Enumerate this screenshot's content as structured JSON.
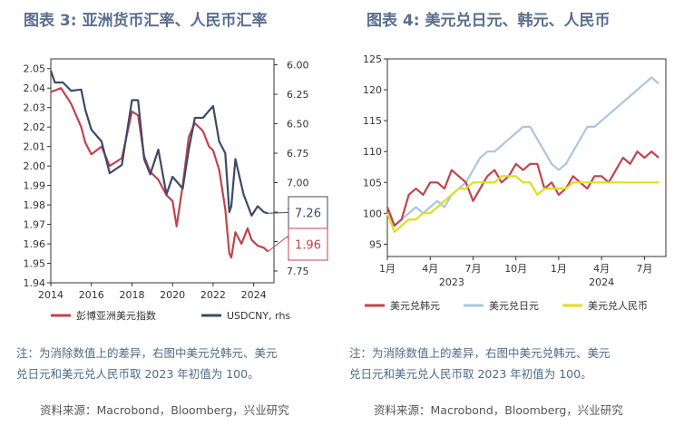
{
  "left": {
    "title": "图表 3: 亚洲货币汇率、人民币汇率",
    "note_line1": "注：为消除数值上的差异，右图中美元兑韩元、美元",
    "note_line2": "兑日元和美元兑人民币取 2023 年初值为 100。",
    "source": "资料来源：Macrobond，Bloomberg，兴业研究"
  },
  "right": {
    "title": "图表 4: 美元兑日元、韩元、人民币",
    "note_line1": "注：为消除数值上的差异，右图中美元兑韩元、美元",
    "note_line2": "兑日元和美元兑人民币取 2023 年初值为 100。",
    "source": "资料来源：Macrobond，Bloomberg，兴业研究"
  },
  "chart_data": [
    {
      "type": "line",
      "title": "图表 3: 亚洲货币汇率、人民币汇率",
      "x_ticks": [
        "2014",
        "2016",
        "2018",
        "2020",
        "2022",
        "2024"
      ],
      "xlim": [
        2014,
        2025
      ],
      "y_left_ticks": [
        "2.05",
        "2.04",
        "2.03",
        "2.02",
        "2.01",
        "2.00",
        "1.99",
        "1.98",
        "1.97",
        "1.96",
        "1.95",
        "1.94"
      ],
      "ylim_left": [
        1.94,
        2.055
      ],
      "y_right_ticks": [
        "6.00",
        "6.25",
        "6.50",
        "6.75",
        "7.00",
        "7.25",
        "7.50",
        "7.75"
      ],
      "ylim_right": [
        7.85,
        5.95
      ],
      "y_right_inverted": true,
      "annotations": [
        {
          "text": "7.26",
          "series": "USDCNY, rhs",
          "color": "#3d4a66"
        },
        {
          "text": "1.96",
          "series": "彭博亚洲美元指数",
          "color": "#c0444e"
        }
      ],
      "legend_position": "bottom",
      "series": [
        {
          "name": "彭博亚洲美元指数",
          "axis": "left",
          "color": "#c0444e",
          "x": [
            2014.0,
            2014.5,
            2015.0,
            2015.5,
            2015.7,
            2016.0,
            2016.5,
            2016.9,
            2017.5,
            2018.0,
            2018.3,
            2018.6,
            2018.9,
            2019.3,
            2019.7,
            2020.0,
            2020.2,
            2020.5,
            2020.8,
            2021.1,
            2021.5,
            2021.8,
            2022.0,
            2022.3,
            2022.6,
            2022.8,
            2022.9,
            2023.1,
            2023.4,
            2023.7,
            2023.9,
            2024.2,
            2024.5,
            2024.7
          ],
          "y": [
            2.038,
            2.04,
            2.032,
            2.02,
            2.012,
            2.006,
            2.01,
            2.0,
            2.004,
            2.028,
            2.026,
            2.005,
            1.997,
            1.993,
            1.985,
            1.982,
            1.969,
            1.99,
            2.015,
            2.022,
            2.018,
            2.01,
            2.008,
            1.998,
            1.978,
            1.955,
            1.953,
            1.966,
            1.96,
            1.968,
            1.962,
            1.959,
            1.958,
            1.956
          ]
        },
        {
          "name": "USDCNY, rhs",
          "axis": "right",
          "color": "#3d4a66",
          "x": [
            2014.0,
            2014.2,
            2014.6,
            2015.0,
            2015.5,
            2015.7,
            2016.0,
            2016.5,
            2016.9,
            2017.5,
            2018.0,
            2018.3,
            2018.6,
            2018.9,
            2019.3,
            2019.7,
            2020.0,
            2020.5,
            2020.8,
            2021.1,
            2021.5,
            2022.0,
            2022.3,
            2022.6,
            2022.8,
            2022.9,
            2023.1,
            2023.5,
            2023.9,
            2024.2,
            2024.5,
            2024.7
          ],
          "y": [
            6.05,
            6.15,
            6.15,
            6.22,
            6.21,
            6.38,
            6.55,
            6.65,
            6.92,
            6.85,
            6.3,
            6.3,
            6.8,
            6.93,
            6.72,
            7.1,
            6.95,
            7.05,
            6.72,
            6.45,
            6.45,
            6.35,
            6.65,
            6.75,
            7.25,
            7.2,
            6.8,
            7.1,
            7.28,
            7.2,
            7.25,
            7.26
          ]
        }
      ]
    },
    {
      "type": "line",
      "title": "图表 4: 美元兑日元、韩元、人民币",
      "x_tick_labels": [
        "1月",
        "4月",
        "7月",
        "10月",
        "1月",
        "4月",
        "7月"
      ],
      "x_year_labels": [
        "2023",
        "2024"
      ],
      "xlim": [
        0,
        19.5
      ],
      "y_ticks": [
        "125",
        "120",
        "115",
        "110",
        "105",
        "100",
        "95"
      ],
      "ylim": [
        93,
        125
      ],
      "legend_position": "bottom",
      "series": [
        {
          "name": "美元兑韩元",
          "color": "#c0444e",
          "x": [
            0,
            0.5,
            1,
            1.5,
            2,
            2.5,
            3,
            3.5,
            4,
            4.5,
            5,
            5.5,
            6,
            6.5,
            7,
            7.5,
            8,
            8.5,
            9,
            9.5,
            10,
            10.5,
            11,
            11.5,
            12,
            12.5,
            13,
            13.5,
            14,
            14.5,
            15,
            15.5,
            16,
            16.5,
            17,
            17.5,
            18,
            18.5,
            19
          ],
          "y": [
            101,
            98,
            99,
            103,
            104,
            103,
            105,
            105,
            104,
            107,
            106,
            105,
            102,
            104,
            106,
            107,
            105,
            106,
            108,
            107,
            108,
            108,
            104,
            105,
            103,
            104,
            106,
            105,
            104,
            106,
            106,
            105,
            107,
            109,
            108,
            110,
            109,
            110,
            109
          ]
        },
        {
          "name": "美元兑日元",
          "color": "#a9c6e2",
          "x": [
            0,
            0.5,
            1,
            1.5,
            2,
            2.5,
            3,
            3.5,
            4,
            4.5,
            5,
            5.5,
            6,
            6.5,
            7,
            7.5,
            8,
            8.5,
            9,
            9.5,
            10,
            10.5,
            11,
            11.5,
            12,
            12.5,
            13,
            13.5,
            14,
            14.5,
            15,
            15.5,
            16,
            16.5,
            17,
            17.5,
            18,
            18.5,
            19
          ],
          "y": [
            100,
            98,
            99,
            100,
            101,
            100,
            101,
            102,
            101,
            103,
            104,
            105,
            107,
            109,
            110,
            110,
            111,
            112,
            113,
            114,
            114,
            112,
            110,
            108,
            107,
            108,
            110,
            112,
            114,
            114,
            115,
            116,
            117,
            118,
            119,
            120,
            121,
            122,
            121
          ]
        },
        {
          "name": "美元兑人民币",
          "color": "#dede1e",
          "x": [
            0,
            0.5,
            1,
            1.5,
            2,
            2.5,
            3,
            3.5,
            4,
            4.5,
            5,
            5.5,
            6,
            6.5,
            7,
            7.5,
            8,
            8.5,
            9,
            9.5,
            10,
            10.5,
            11,
            11.5,
            12,
            12.5,
            13,
            13.5,
            14,
            14.5,
            15,
            15.5,
            16,
            16.5,
            17,
            17.5,
            18,
            18.5,
            19
          ],
          "y": [
            100,
            97,
            98,
            99,
            99,
            100,
            100,
            101,
            102,
            103,
            104,
            104,
            105,
            105,
            105,
            105,
            106,
            106,
            106,
            105,
            105,
            103,
            104,
            104,
            104,
            104,
            105,
            105,
            105,
            105,
            105,
            105,
            105,
            105,
            105,
            105,
            105,
            105,
            105
          ]
        }
      ]
    }
  ]
}
